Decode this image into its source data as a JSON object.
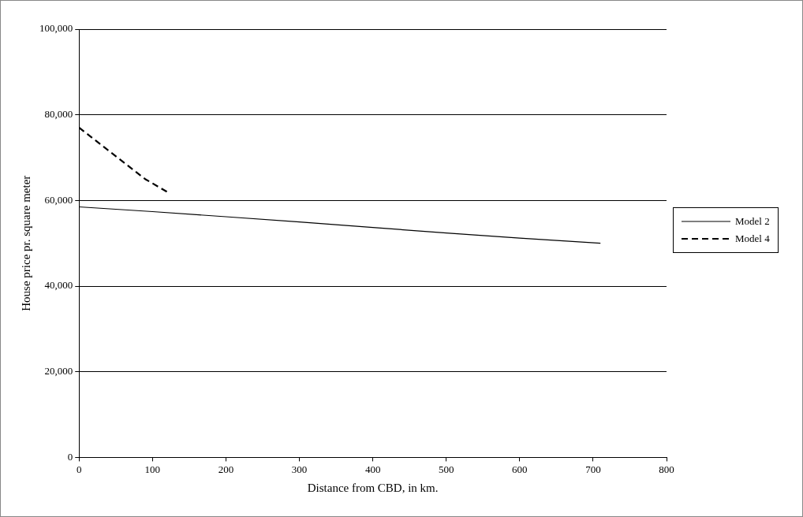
{
  "chart_data": {
    "type": "line",
    "xlabel": "Distance from CBD, in km.",
    "ylabel": "House price pr. square meter",
    "xlim": [
      0,
      800
    ],
    "xticks": [
      0,
      100,
      200,
      300,
      400,
      500,
      600,
      700,
      800
    ],
    "ylim": [
      0,
      100000
    ],
    "yticks": [
      {
        "value": 0,
        "label": "0"
      },
      {
        "value": 20000,
        "label": "20,000"
      },
      {
        "value": 40000,
        "label": "40,000"
      },
      {
        "value": 60000,
        "label": "60,000"
      },
      {
        "value": 80000,
        "label": "80,000"
      },
      {
        "value": 100000,
        "label": "100,000"
      }
    ],
    "grid": "y",
    "legend": "right",
    "marker": "none",
    "series": [
      {
        "name": "Model 2",
        "color": "#000000",
        "line_style": "solid",
        "x": [
          0,
          100,
          200,
          300,
          400,
          500,
          600,
          710
        ],
        "values": [
          58500,
          57400,
          56200,
          55000,
          53700,
          52400,
          51200,
          50000
        ]
      },
      {
        "name": "Model 4",
        "color": "#000000",
        "line_style": "dashed",
        "x": [
          0,
          30,
          90,
          120
        ],
        "values": [
          77000,
          73000,
          65000,
          62000
        ]
      }
    ]
  }
}
